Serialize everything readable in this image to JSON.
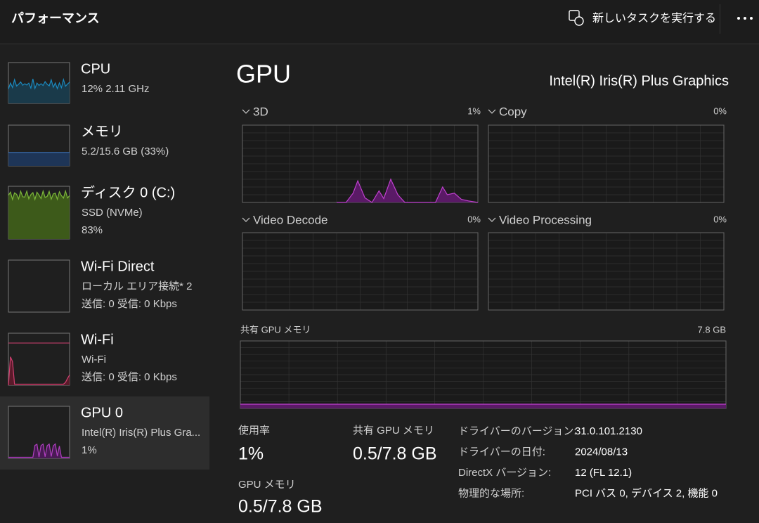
{
  "header": {
    "title": "パフォーマンス",
    "new_task": "新しいタスクを実行する"
  },
  "sidebar": {
    "items": [
      {
        "name": "CPU",
        "lines": [
          "12%  2.11 GHz"
        ]
      },
      {
        "name": "メモリ",
        "lines": [
          "5.2/15.6 GB (33%)"
        ]
      },
      {
        "name": "ディスク 0 (C:)",
        "lines": [
          "SSD (NVMe)",
          "83%"
        ]
      },
      {
        "name": "Wi-Fi Direct",
        "lines": [
          "ローカル エリア接続* 2",
          "送信: 0  受信: 0 Kbps"
        ]
      },
      {
        "name": "Wi-Fi",
        "lines": [
          "Wi-Fi",
          "送信: 0  受信: 0 Kbps"
        ]
      },
      {
        "name": "GPU 0",
        "lines": [
          "Intel(R) Iris(R) Plus Gra...",
          "1%"
        ]
      }
    ]
  },
  "detail": {
    "title": "GPU",
    "model": "Intel(R) Iris(R) Plus Graphics",
    "engines": [
      {
        "name": "3D",
        "percent": "1%"
      },
      {
        "name": "Copy",
        "percent": "0%"
      },
      {
        "name": "Video Decode",
        "percent": "0%"
      },
      {
        "name": "Video Processing",
        "percent": "0%"
      }
    ],
    "shared_memory": {
      "label": "共有 GPU メモリ",
      "max": "7.8 GB"
    },
    "stats": [
      {
        "label": "使用率",
        "value": "1%"
      },
      {
        "label": "共有 GPU メモリ",
        "value": "0.5/7.8 GB"
      },
      {
        "label": "GPU メモリ",
        "value": "0.5/7.8 GB"
      }
    ],
    "info": [
      {
        "label": "ドライバーのバージョン:",
        "value": "31.0.101.2130"
      },
      {
        "label": "ドライバーの日付:",
        "value": "2024/08/13"
      },
      {
        "label": "DirectX バージョン:",
        "value": "12 (FL 12.1)"
      },
      {
        "label": "物理的な場所:",
        "value": "PCI バス 0, デバイス 2, 機能 0"
      }
    ]
  }
}
